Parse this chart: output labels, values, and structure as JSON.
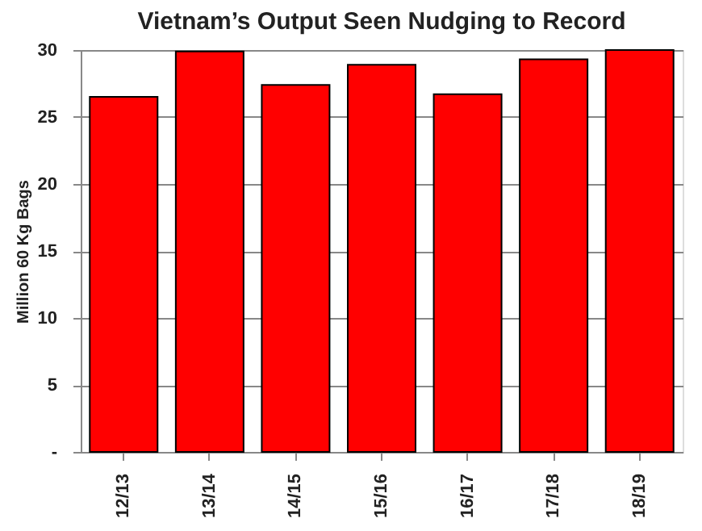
{
  "chart_data": {
    "type": "bar",
    "title": "Vietnam’s Output Seen Nudging to Record",
    "ylabel": "Million 60 Kg Bags",
    "categories": [
      "12/13",
      "13/14",
      "14/15",
      "15/16",
      "16/17",
      "17/18",
      "18/19"
    ],
    "values": [
      26.5,
      29.9,
      27.4,
      28.9,
      26.7,
      29.3,
      30.0
    ],
    "color": "#ff0000",
    "ylim": [
      0,
      30
    ],
    "yticks": [
      {
        "value": 0,
        "label": "-"
      },
      5,
      10,
      15,
      20,
      25,
      30
    ],
    "grid": "y"
  }
}
